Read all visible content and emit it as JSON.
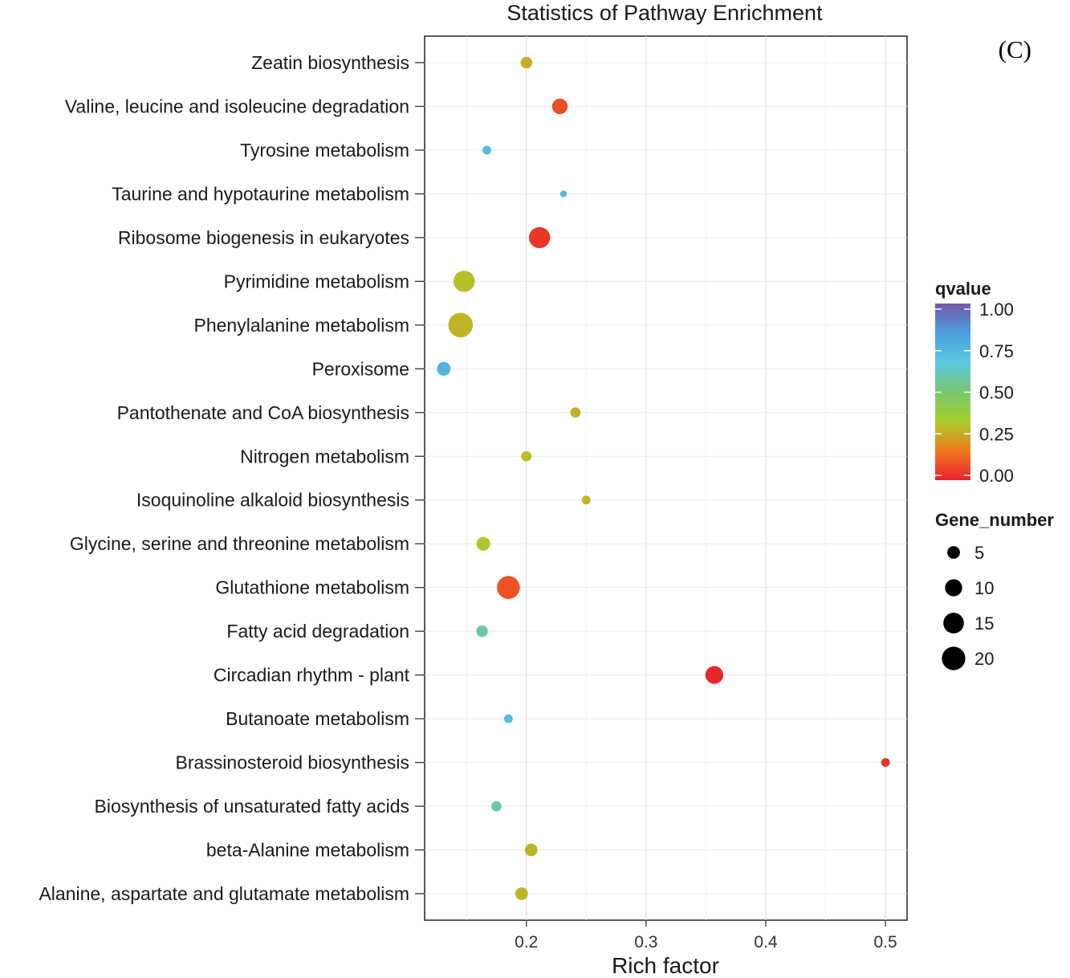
{
  "panel_label": "(C)",
  "chart_data": {
    "type": "scatter",
    "title": "Statistics of Pathway Enrichment",
    "xlabel": "Rich factor",
    "ylabel": "",
    "xlim": [
      0.115,
      0.518
    ],
    "xticks": [
      0.2,
      0.3,
      0.4,
      0.5
    ],
    "xtick_labels": [
      "0.2",
      "0.3",
      "0.4",
      "0.5"
    ],
    "grid": true,
    "categories": [
      "Zeatin biosynthesis",
      "Valine, leucine and isoleucine degradation",
      "Tyrosine metabolism",
      "Taurine and hypotaurine metabolism",
      "Ribosome biogenesis in eukaryotes",
      "Pyrimidine metabolism",
      "Phenylalanine metabolism",
      "Peroxisome",
      "Pantothenate and CoA biosynthesis",
      "Nitrogen metabolism",
      "Isoquinoline alkaloid biosynthesis",
      "Glycine, serine and threonine metabolism",
      "Glutathione metabolism",
      "Fatty acid degradation",
      "Circadian rhythm - plant",
      "Butanoate metabolism",
      "Brassinosteroid biosynthesis",
      "Biosynthesis of unsaturated fatty acids",
      "beta-Alanine metabolism",
      "Alanine, aspartate and glutamate metabolism"
    ],
    "rich_factor": [
      0.2,
      0.228,
      0.167,
      0.231,
      0.211,
      0.148,
      0.145,
      0.131,
      0.241,
      0.2,
      0.25,
      0.164,
      0.185,
      0.163,
      0.357,
      0.185,
      0.5,
      0.175,
      0.204,
      0.196
    ],
    "qvalue": [
      0.26,
      0.08,
      0.72,
      0.73,
      0.04,
      0.3,
      0.28,
      0.75,
      0.27,
      0.3,
      0.28,
      0.32,
      0.09,
      0.58,
      0.01,
      0.72,
      0.03,
      0.58,
      0.28,
      0.28
    ],
    "gene_number": [
      4,
      8,
      2,
      1,
      16,
      16,
      22,
      6,
      3,
      3,
      2,
      6,
      19,
      4,
      11,
      2,
      2,
      3,
      5,
      5
    ],
    "legend_color": {
      "title": "qvalue",
      "ticks": [
        "1.00",
        "0.75",
        "0.50",
        "0.25",
        "0.00"
      ],
      "tick_values": [
        1.0,
        0.75,
        0.5,
        0.25,
        0.0
      ],
      "gradient": [
        "#e8222e",
        "#f07a1f",
        "#a8cf2a",
        "#76c86e",
        "#5cc8e0",
        "#4aa0dd",
        "#7558a8"
      ]
    },
    "legend_size": {
      "title": "Gene_number",
      "values": [
        5,
        10,
        15,
        20
      ],
      "labels": [
        "5",
        "10",
        "15",
        "20"
      ]
    }
  }
}
